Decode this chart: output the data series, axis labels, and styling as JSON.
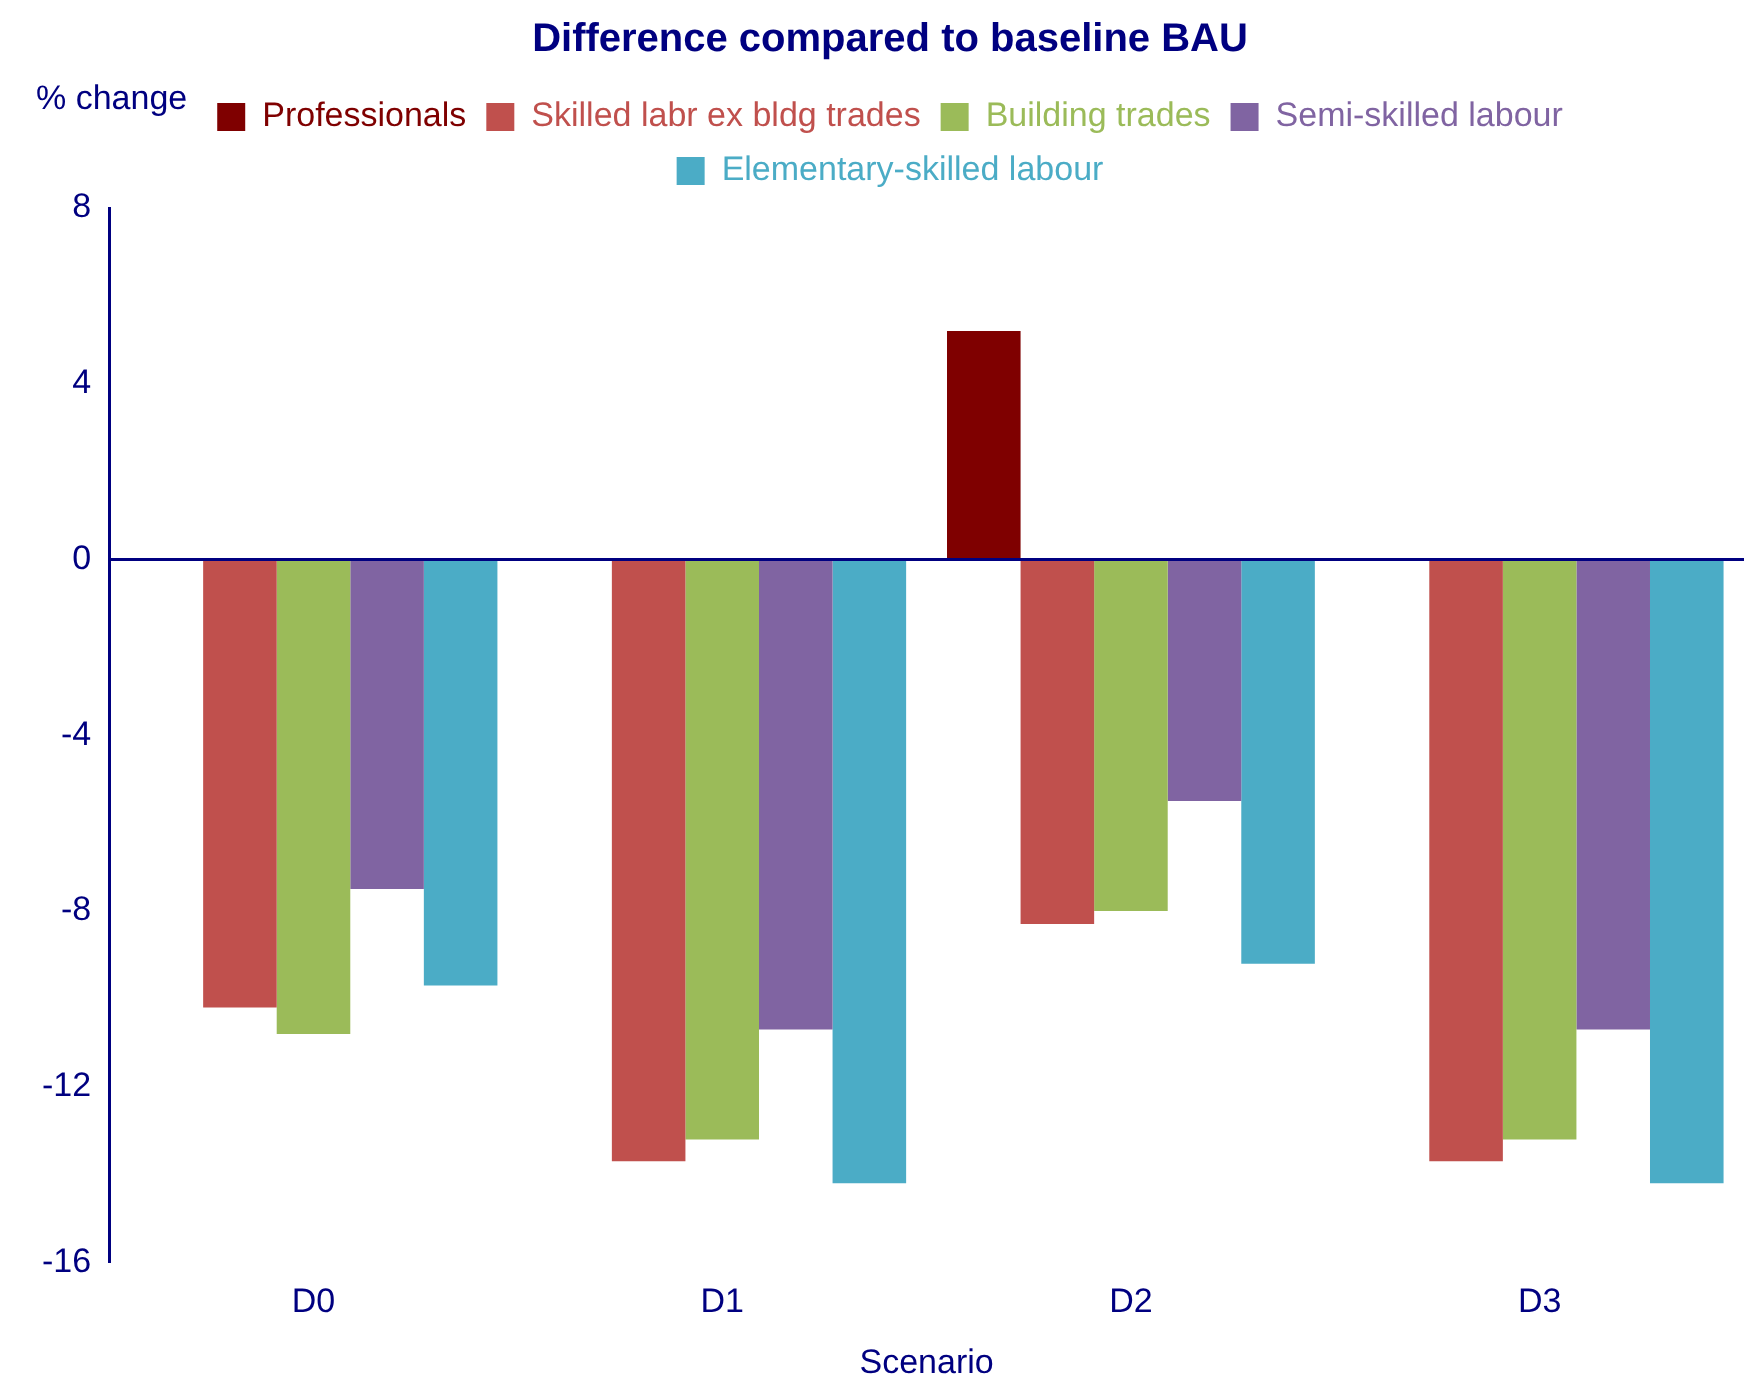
{
  "chart_data": {
    "type": "bar",
    "title": "Difference compared to baseline BAU",
    "xlabel": "Scenario",
    "ylabel": "% change",
    "categories": [
      "D0",
      "D1",
      "D2",
      "D3"
    ],
    "series": [
      {
        "name": "Professionals",
        "color": "#7f0000",
        "values": [
          0,
          0,
          5.2,
          0
        ]
      },
      {
        "name": "Skilled labr ex bldg trades",
        "color": "#c0504d",
        "values": [
          -10.2,
          -13.7,
          -8.3,
          -13.7
        ]
      },
      {
        "name": "Building trades",
        "color": "#9bbb59",
        "values": [
          -10.8,
          -13.2,
          -8.0,
          -13.2
        ]
      },
      {
        "name": "Semi-skilled labour",
        "color": "#8064a2",
        "values": [
          -7.5,
          -10.7,
          -5.5,
          -10.7
        ]
      },
      {
        "name": "Elementary-skilled labour",
        "color": "#4bacc6",
        "values": [
          -9.7,
          -14.2,
          -9.2,
          -14.2
        ]
      }
    ],
    "ylim": [
      -16,
      8
    ],
    "yticks": [
      -16,
      -12,
      -8,
      -4,
      0,
      4,
      8
    ],
    "grid": false,
    "legend": "top",
    "ref_lines": [
      {
        "axis": "y",
        "value": 0,
        "color": "#000080"
      }
    ]
  }
}
